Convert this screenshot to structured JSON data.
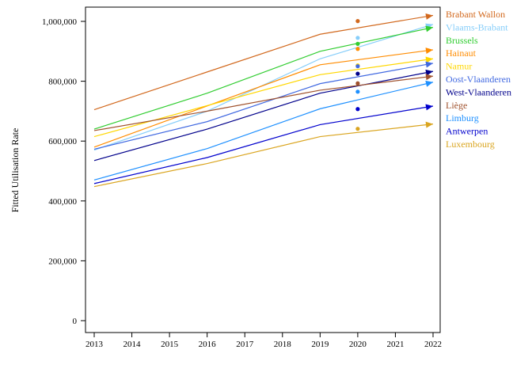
{
  "chart_data": {
    "type": "line",
    "title": "",
    "xlabel": "",
    "ylabel": "Fitted Utilisation Rate",
    "x": [
      2013,
      2014,
      2015,
      2016,
      2017,
      2018,
      2019,
      2020,
      2021,
      2022
    ],
    "x_ticks": [
      "2013",
      "2014",
      "2015",
      "2016",
      "2017",
      "2018",
      "2019",
      "2020",
      "2021",
      "2022"
    ],
    "xlim": [
      2013,
      2022
    ],
    "ylim": [
      0,
      1000000
    ],
    "y_ticks": [
      0,
      200000,
      400000,
      600000,
      800000,
      1000000
    ],
    "y_tick_labels": [
      "0",
      "200,000",
      "400,000",
      "600,000",
      "800,000",
      "1,000,000"
    ],
    "grid": false,
    "legend_position": "right",
    "series": [
      {
        "name": "Brabant Wallon",
        "color": "#d2691e",
        "line_x": [
          2013,
          2019,
          2022
        ],
        "line_y": [
          705000,
          957000,
          1020000
        ],
        "observed_x": 2020,
        "observed_y": 1001000
      },
      {
        "name": "Vlaams-Brabant",
        "color": "#87cefa",
        "line_x": [
          2013,
          2016,
          2019,
          2022
        ],
        "line_y": [
          570000,
          700000,
          875000,
          990000
        ],
        "observed_x": 2020,
        "observed_y": 945000
      },
      {
        "name": "Brussels",
        "color": "#32cd32",
        "line_x": [
          2013,
          2016,
          2019,
          2022
        ],
        "line_y": [
          640000,
          760000,
          900000,
          980000
        ],
        "observed_x": 2020,
        "observed_y": 925000
      },
      {
        "name": "Hainaut",
        "color": "#ff8c00",
        "line_x": [
          2013,
          2019,
          2022
        ],
        "line_y": [
          580000,
          855000,
          905000
        ],
        "observed_x": 2020,
        "observed_y": 908000
      },
      {
        "name": "Namur",
        "color": "#ffd700",
        "line_x": [
          2013,
          2019,
          2022
        ],
        "line_y": [
          615000,
          822000,
          875000
        ],
        "observed_x": 2020,
        "observed_y": 853000
      },
      {
        "name": "Oost-Vlaanderen",
        "color": "#4169e1",
        "line_x": [
          2013,
          2016,
          2019,
          2022
        ],
        "line_y": [
          573000,
          665000,
          792000,
          860000
        ],
        "observed_x": 2020,
        "observed_y": 850000
      },
      {
        "name": "West-Vlaanderen",
        "color": "#00008b",
        "line_x": [
          2013,
          2016,
          2019,
          2022
        ],
        "line_y": [
          535000,
          640000,
          760000,
          833000
        ],
        "observed_x": 2020,
        "observed_y": 825000
      },
      {
        "name": "Liège",
        "color": "#a0522d",
        "line_x": [
          2013,
          2016,
          2019,
          2022
        ],
        "line_y": [
          635000,
          700000,
          770000,
          817000
        ],
        "observed_x": 2020,
        "observed_y": 793000
      },
      {
        "name": "Limburg",
        "color": "#1e90ff",
        "line_x": [
          2013,
          2016,
          2019,
          2022
        ],
        "line_y": [
          470000,
          575000,
          708000,
          797000
        ],
        "observed_x": 2020,
        "observed_y": 765000
      },
      {
        "name": "Antwerpen",
        "color": "#0000cd",
        "line_x": [
          2013,
          2016,
          2019,
          2022
        ],
        "line_y": [
          458000,
          545000,
          655000,
          717000
        ],
        "observed_x": 2020,
        "observed_y": 707000
      },
      {
        "name": "Luxembourg",
        "color": "#daa520",
        "line_x": [
          2013,
          2016,
          2019,
          2022
        ],
        "line_y": [
          448000,
          525000,
          615000,
          657000
        ],
        "observed_x": 2020,
        "observed_y": 641000
      }
    ]
  }
}
